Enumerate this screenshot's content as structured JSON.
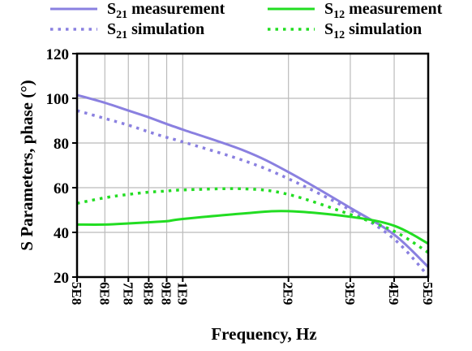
{
  "chart_data": {
    "type": "line",
    "title": "",
    "xlabel": "Frequency, Hz",
    "ylabel": "S Parameters, phase (°)",
    "x_scale": "log",
    "xlim": [
      500000000,
      5000000000
    ],
    "ylim": [
      20,
      120
    ],
    "grid": true,
    "legend_position": "top",
    "y_ticks": [
      20,
      40,
      60,
      80,
      100,
      120
    ],
    "x_ticks": [
      {
        "value": 500000000,
        "label": "5E8"
      },
      {
        "value": 600000000,
        "label": "6E8"
      },
      {
        "value": 700000000,
        "label": "7E8"
      },
      {
        "value": 800000000,
        "label": "8E8"
      },
      {
        "value": 900000000,
        "label": "9E8"
      },
      {
        "value": 1000000000,
        "label": "1E9"
      },
      {
        "value": 2000000000,
        "label": "2E9"
      },
      {
        "value": 3000000000,
        "label": "3E9"
      },
      {
        "value": 4000000000,
        "label": "4E9"
      },
      {
        "value": 5000000000,
        "label": "5E9"
      }
    ],
    "series": [
      {
        "name": "S21 measurement",
        "legend_main": "S",
        "legend_sub": "21",
        "legend_rest": " measurement",
        "color": "#8a80e0",
        "dash": "solid",
        "x": [
          500000000,
          600000000,
          700000000,
          800000000,
          900000000,
          1000000000,
          1500000000,
          2000000000,
          3000000000,
          4000000000,
          5000000000
        ],
        "y": [
          101.5,
          98,
          94.5,
          91.5,
          88.5,
          86,
          76.5,
          67,
          51,
          39,
          24.5
        ]
      },
      {
        "name": "S21 simulation",
        "legend_main": "S",
        "legend_sub": "21",
        "legend_rest": " simulation",
        "color": "#8a80e0",
        "dash": "dotted",
        "x": [
          500000000,
          600000000,
          700000000,
          800000000,
          900000000,
          1000000000,
          1500000000,
          2000000000,
          3000000000,
          4000000000,
          5000000000
        ],
        "y": [
          94.5,
          91,
          88,
          85,
          82.5,
          80.5,
          72,
          64,
          50,
          37,
          20.5
        ]
      },
      {
        "name": "S12 measurement",
        "legend_main": "S",
        "legend_sub": "12",
        "legend_rest": " measurement",
        "color": "#22dd22",
        "dash": "solid",
        "x": [
          500000000,
          600000000,
          700000000,
          800000000,
          900000000,
          1000000000,
          1500000000,
          2000000000,
          3000000000,
          4000000000,
          5000000000
        ],
        "y": [
          43.5,
          43.5,
          44,
          44.5,
          45,
          46,
          48.5,
          49.5,
          47,
          43,
          35
        ]
      },
      {
        "name": "S12 simulation",
        "legend_main": "S",
        "legend_sub": "12",
        "legend_rest": " simulation",
        "color": "#22dd22",
        "dash": "dotted",
        "x": [
          500000000,
          600000000,
          700000000,
          800000000,
          900000000,
          1000000000,
          1500000000,
          2000000000,
          3000000000,
          4000000000,
          5000000000
        ],
        "y": [
          53,
          55.5,
          57,
          58,
          58.5,
          59,
          59.5,
          57,
          48,
          40.5,
          31
        ]
      }
    ]
  }
}
